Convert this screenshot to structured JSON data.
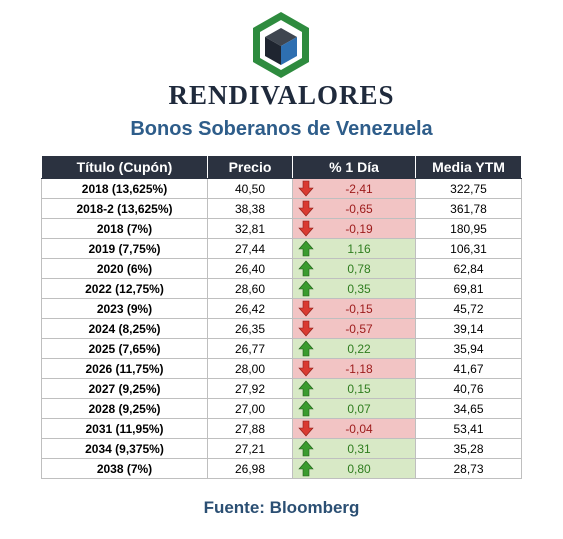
{
  "brand": {
    "name": "RENDIVALORES"
  },
  "report": {
    "title": "Bonos Soberanos de Venezuela",
    "source": "Fuente: Bloomberg"
  },
  "table": {
    "headers": [
      "Título (Cupón)",
      "Precio",
      "% 1 Día",
      "Media YTM"
    ],
    "rows": [
      {
        "title": "2018 (13,625%)",
        "price": "40,50",
        "change": "-2,41",
        "direction": "down",
        "ytm": "322,75"
      },
      {
        "title": "2018-2 (13,625%)",
        "price": "38,38",
        "change": "-0,65",
        "direction": "down",
        "ytm": "361,78"
      },
      {
        "title": "2018 (7%)",
        "price": "32,81",
        "change": "-0,19",
        "direction": "down",
        "ytm": "180,95"
      },
      {
        "title": "2019 (7,75%)",
        "price": "27,44",
        "change": "1,16",
        "direction": "up",
        "ytm": "106,31"
      },
      {
        "title": "2020 (6%)",
        "price": "26,40",
        "change": "0,78",
        "direction": "up",
        "ytm": "62,84"
      },
      {
        "title": "2022 (12,75%)",
        "price": "28,60",
        "change": "0,35",
        "direction": "up",
        "ytm": "69,81"
      },
      {
        "title": "2023 (9%)",
        "price": "26,42",
        "change": "-0,15",
        "direction": "down",
        "ytm": "45,72"
      },
      {
        "title": "2024 (8,25%)",
        "price": "26,35",
        "change": "-0,57",
        "direction": "down",
        "ytm": "39,14"
      },
      {
        "title": "2025 (7,65%)",
        "price": "26,77",
        "change": "0,22",
        "direction": "up",
        "ytm": "35,94"
      },
      {
        "title": "2026 (11,75%)",
        "price": "28,00",
        "change": "-1,18",
        "direction": "down",
        "ytm": "41,67"
      },
      {
        "title": "2027 (9,25%)",
        "price": "27,92",
        "change": "0,15",
        "direction": "up",
        "ytm": "40,76"
      },
      {
        "title": "2028 (9,25%)",
        "price": "27,00",
        "change": "0,07",
        "direction": "up",
        "ytm": "34,65"
      },
      {
        "title": "2031 (11,95%)",
        "price": "27,88",
        "change": "-0,04",
        "direction": "down",
        "ytm": "53,41"
      },
      {
        "title": "2034 (9,375%)",
        "price": "27,21",
        "change": "0,31",
        "direction": "up",
        "ytm": "35,28"
      },
      {
        "title": "2038 (7%)",
        "price": "26,98",
        "change": "0,80",
        "direction": "up",
        "ytm": "28,73"
      }
    ]
  },
  "colors": {
    "header_bg": "#2b3240",
    "negative_bg": "#f2c4c4",
    "positive_bg": "#d8e9c6",
    "down_arrow": "#d93a32",
    "up_arrow": "#3a9b2e",
    "logo_green": "#2e8b3e",
    "logo_blue": "#2e6fb0"
  },
  "icons": {
    "logo": "hexagon-cube-logo",
    "down": "arrow-down-icon",
    "up": "arrow-up-icon"
  }
}
